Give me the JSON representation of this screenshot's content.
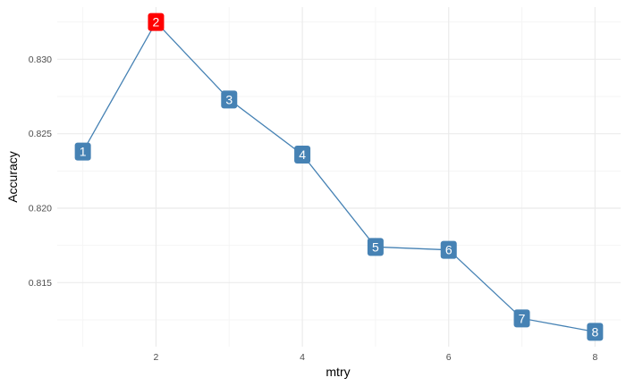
{
  "chart_data": {
    "type": "line",
    "title": "",
    "xlabel": "mtry",
    "ylabel": "Accuracy",
    "x": [
      1,
      2,
      3,
      4,
      5,
      6,
      7,
      8
    ],
    "series": [
      {
        "values": [
          0.8238,
          0.8325,
          0.8273,
          0.8236,
          0.8174,
          0.8172,
          0.8126,
          0.8117
        ],
        "labels": [
          "1",
          "2",
          "3",
          "4",
          "5",
          "6",
          "7",
          "8"
        ]
      }
    ],
    "highlight_index": 1,
    "xlim": [
      0.65,
      8.35
    ],
    "ylim": [
      0.8107,
      0.8335
    ],
    "xticks": [
      2,
      4,
      6,
      8
    ],
    "xtick_labels": [
      "2",
      "4",
      "6",
      "8"
    ],
    "yticks": [
      0.815,
      0.82,
      0.825,
      0.83
    ],
    "ytick_labels": [
      "0.815",
      "0.820",
      "0.825",
      "0.830"
    ],
    "grid": true,
    "legend": "none",
    "colors": {
      "line": "#4682b4",
      "label_fill": "#4682b4",
      "highlight_fill": "#ff0000",
      "grid_major": "#ebebeb",
      "grid_minor": "#f5f5f5"
    }
  }
}
